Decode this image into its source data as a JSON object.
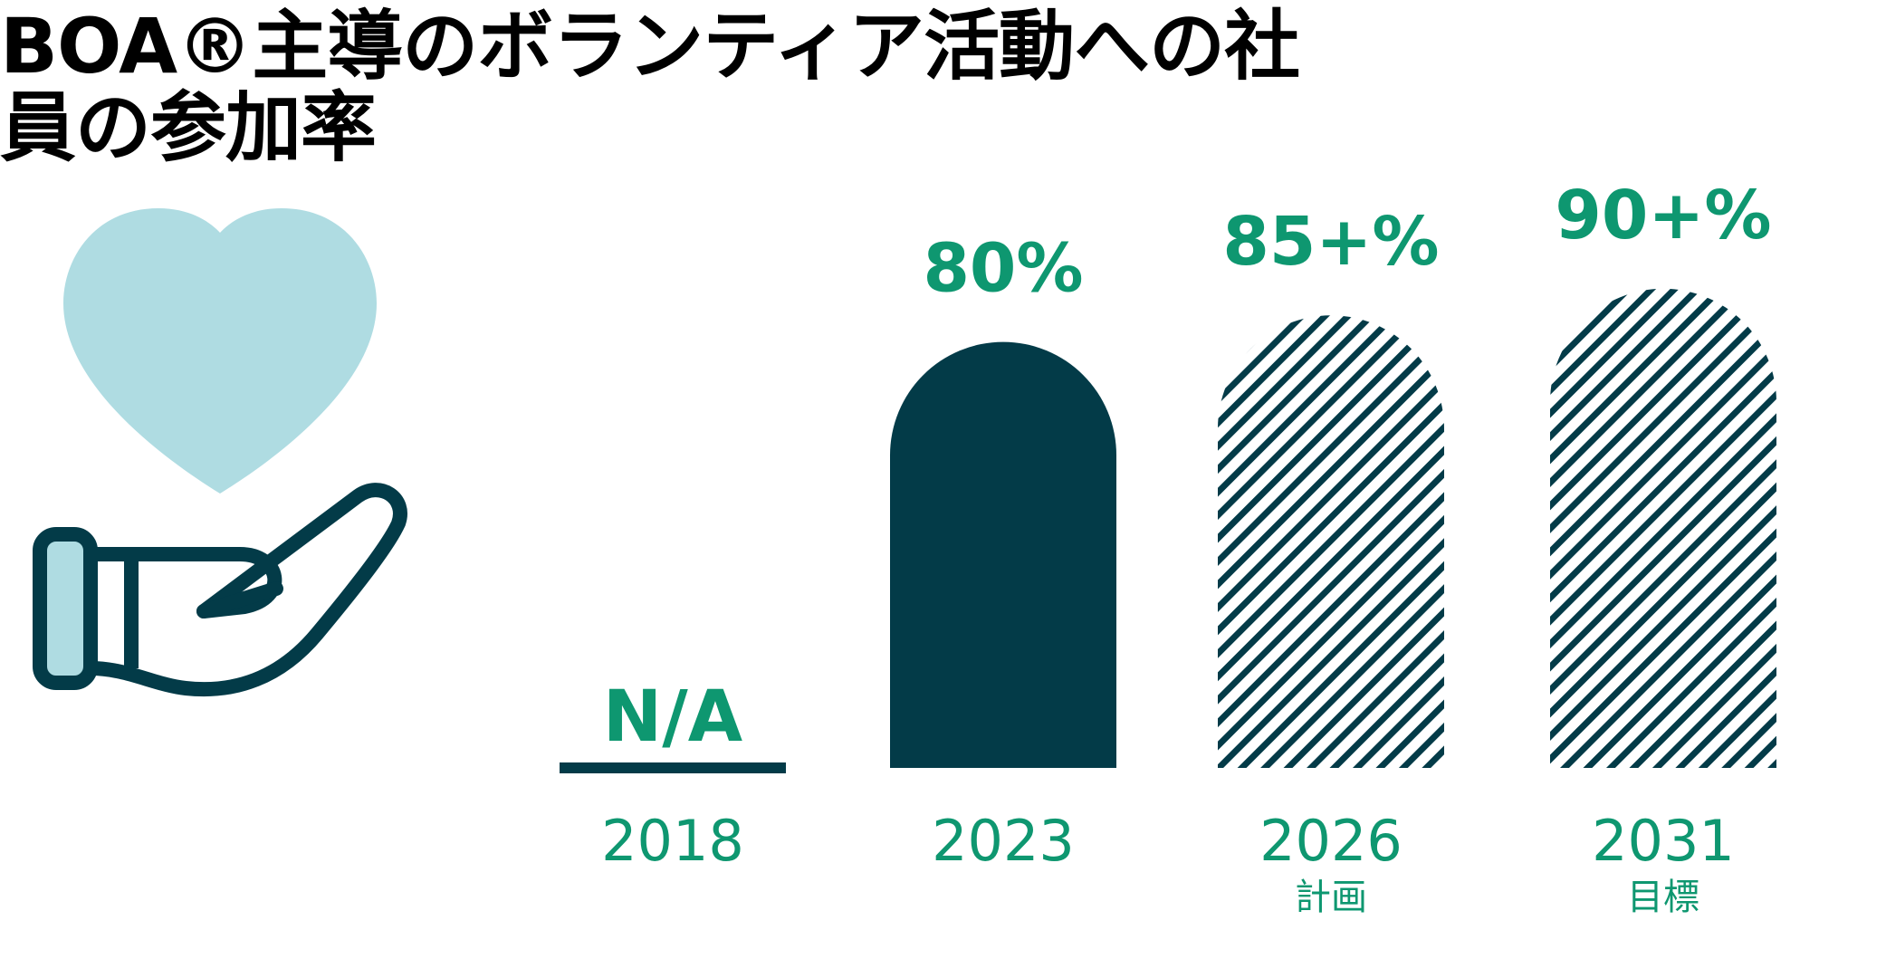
{
  "title": "BOA®主導のボランティア活動への社員の参加率",
  "colors": {
    "accent": "#0e9770",
    "dark": "#033b48",
    "heart": "#afdce2"
  },
  "icons": {
    "illustration": "hand-holding-heart-icon"
  },
  "chart_data": {
    "type": "bar",
    "ylim": [
      0,
      100
    ],
    "categories": [
      "2018",
      "2023",
      "2026",
      "2031"
    ],
    "values": [
      null,
      80,
      85,
      90
    ],
    "value_labels": [
      "N/A",
      "80%",
      "85+%",
      "90+%"
    ],
    "category_sublabels": [
      "",
      "",
      "計画",
      "目標"
    ],
    "series_styles": [
      "none",
      "solid",
      "hatched",
      "hatched"
    ]
  }
}
